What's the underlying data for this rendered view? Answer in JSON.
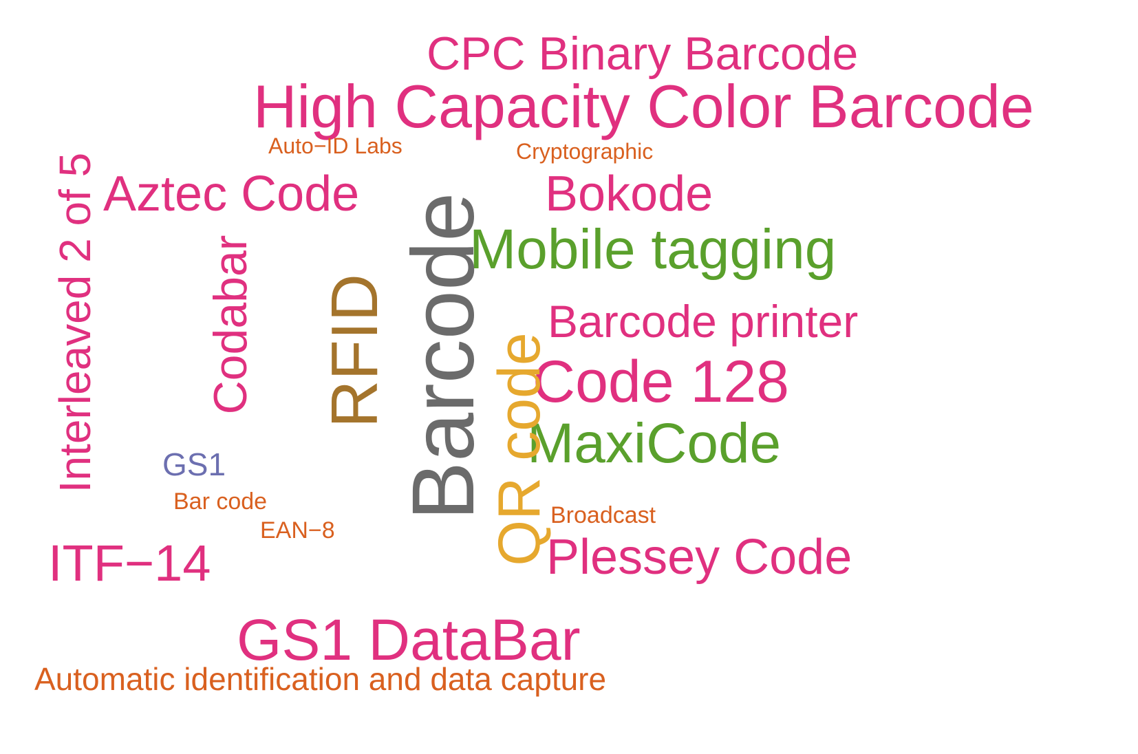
{
  "colors": {
    "pink": "#e0307f",
    "orange": "#d9601f",
    "gray": "#6b6b6b",
    "green": "#5aa02c",
    "brown": "#a4742c",
    "gold": "#e6a82e",
    "blue": "#6c6fb0"
  },
  "words": [
    {
      "id": "cpc-binary-barcode",
      "text": "CPC Binary Barcode",
      "color": "pink",
      "rotated": false
    },
    {
      "id": "high-capacity-color-barcode",
      "text": "High Capacity Color Barcode",
      "color": "pink",
      "rotated": false
    },
    {
      "id": "auto-id-labs",
      "text": "Auto−ID Labs",
      "color": "orange",
      "rotated": false
    },
    {
      "id": "cryptographic",
      "text": "Cryptographic",
      "color": "orange",
      "rotated": false
    },
    {
      "id": "aztec-code",
      "text": "Aztec Code",
      "color": "pink",
      "rotated": false
    },
    {
      "id": "bokode",
      "text": "Bokode",
      "color": "pink",
      "rotated": false
    },
    {
      "id": "mobile-tagging",
      "text": "Mobile tagging",
      "color": "green",
      "rotated": false
    },
    {
      "id": "barcode-printer",
      "text": "Barcode printer",
      "color": "pink",
      "rotated": false
    },
    {
      "id": "code-128",
      "text": "Code 128",
      "color": "pink",
      "rotated": false
    },
    {
      "id": "maxicode",
      "text": "MaxiCode",
      "color": "green",
      "rotated": false
    },
    {
      "id": "gs1",
      "text": "GS1",
      "color": "blue",
      "rotated": false
    },
    {
      "id": "bar-code",
      "text": "Bar code",
      "color": "orange",
      "rotated": false
    },
    {
      "id": "ean-8",
      "text": "EAN−8",
      "color": "orange",
      "rotated": false
    },
    {
      "id": "broadcast",
      "text": "Broadcast",
      "color": "orange",
      "rotated": false
    },
    {
      "id": "plessey-code",
      "text": "Plessey Code",
      "color": "pink",
      "rotated": false
    },
    {
      "id": "itf-14",
      "text": "ITF−14",
      "color": "pink",
      "rotated": false
    },
    {
      "id": "gs1-databar",
      "text": "GS1 DataBar",
      "color": "pink",
      "rotated": false
    },
    {
      "id": "automatic-identification",
      "text": "Automatic identification and data capture",
      "color": "orange",
      "rotated": false
    },
    {
      "id": "interleaved-2-of-5",
      "text": "Interleaved 2 of 5",
      "color": "pink",
      "rotated": true
    },
    {
      "id": "codabar",
      "text": "Codabar",
      "color": "pink",
      "rotated": true
    },
    {
      "id": "rfid",
      "text": "RFID",
      "color": "brown",
      "rotated": true
    },
    {
      "id": "barcode",
      "text": "Barcode",
      "color": "gray",
      "rotated": true
    },
    {
      "id": "qr-code",
      "text": "QR code",
      "color": "gold",
      "rotated": true
    }
  ]
}
